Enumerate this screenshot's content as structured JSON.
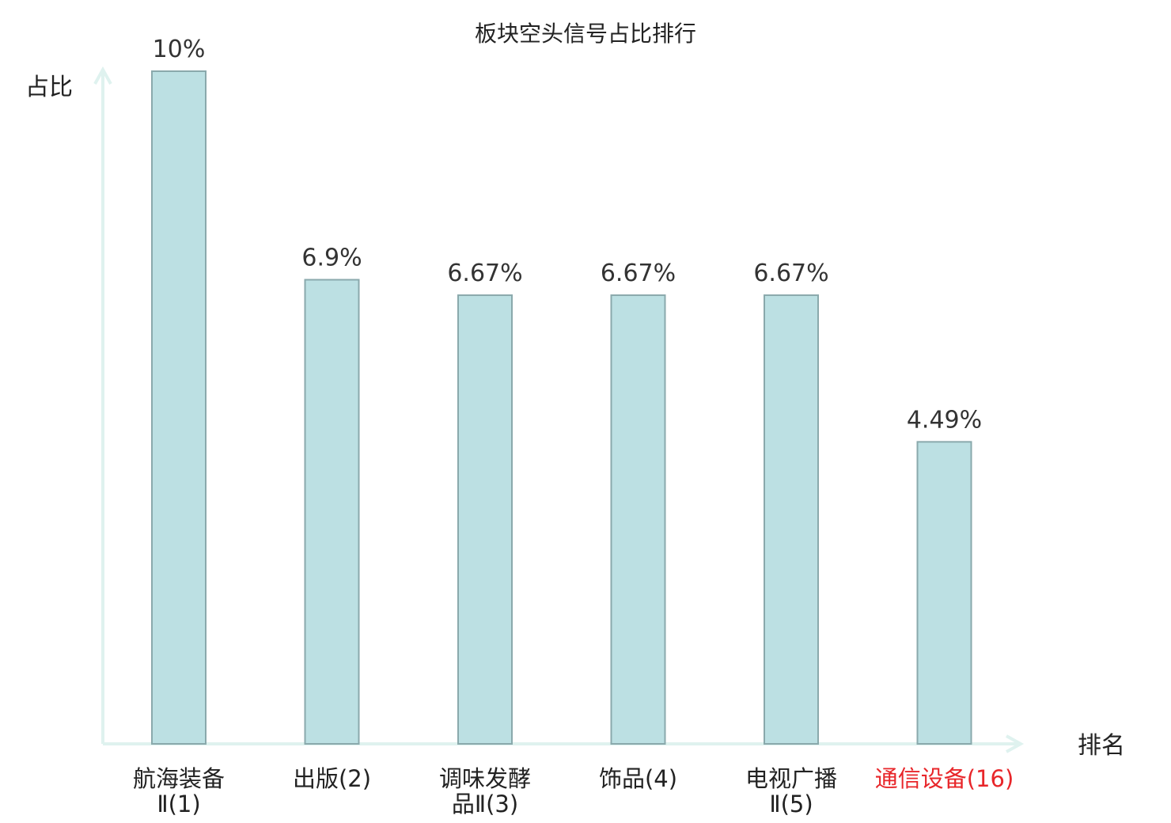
{
  "chart_data": {
    "type": "bar",
    "title": "板块空头信号占比排行",
    "ylabel": "占比",
    "xlabel": "排名",
    "ylim": [
      0,
      10
    ],
    "categories": [
      {
        "name_lines": [
          "航海装备",
          "Ⅱ(1)"
        ]
      },
      {
        "name_lines": [
          "出版(2)"
        ]
      },
      {
        "name_lines": [
          "调味发酵",
          "品Ⅱ(3)"
        ]
      },
      {
        "name_lines": [
          "饰品(4)"
        ]
      },
      {
        "name_lines": [
          "电视广播",
          "Ⅱ(5)"
        ]
      },
      {
        "name_lines": [
          "通信设备(16)"
        ],
        "highlight": true
      }
    ],
    "values": [
      10,
      6.9,
      6.67,
      6.67,
      6.67,
      4.49
    ],
    "value_labels": [
      "10%",
      "6.9%",
      "6.67%",
      "6.67%",
      "6.67%",
      "4.49%"
    ],
    "grid": false,
    "colors": {
      "bar_fill": "#bce0e3",
      "bar_stroke": "#8aa9ac",
      "axis": "#dff2ef",
      "highlight_text": "#e8262a",
      "text": "#222222"
    }
  }
}
